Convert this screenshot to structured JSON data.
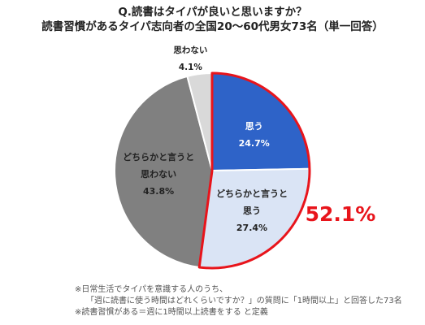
{
  "title_line1": "Q.読書はタイパが良いと思いますか？",
  "title_line2": "読書習慣があるタイパ志向者の全国20～60代男女73名（単一回答）",
  "chart_data": {
    "type": "pie",
    "slices": [
      {
        "label_lines": [
          "思う"
        ],
        "value": 24.7,
        "value_text": "24.7%",
        "color": "#2e63c8",
        "text_color": "#ffffff"
      },
      {
        "label_lines": [
          "どちらかと言うと",
          "思う"
        ],
        "value": 27.4,
        "value_text": "27.4%",
        "color": "#dae4f5",
        "text_color": "#222222"
      },
      {
        "label_lines": [
          "どちらかと言うと",
          "思わない"
        ],
        "value": 43.8,
        "value_text": "43.8%",
        "color": "#808080",
        "text_color": "#222222"
      },
      {
        "label_lines": [
          "思わない"
        ],
        "value": 4.1,
        "value_text": "4.1%",
        "color": "#d9d9d9",
        "text_color": "#222222"
      }
    ],
    "highlight": {
      "value_text": "52.1%",
      "color": "#e8141b"
    }
  },
  "notes": [
    "※日常生活でタイパを意識する人のうち、",
    "「週に読書に使う時間はどれくらいですか？」の質問に「1時間以上」と回答した73名",
    "※読書習慣がある＝週に1時間以上読書をする と定義"
  ]
}
